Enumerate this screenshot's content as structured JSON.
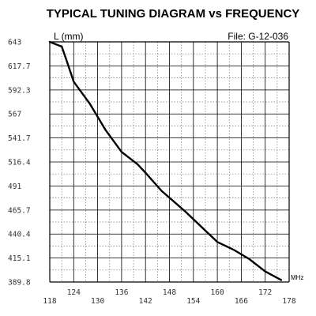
{
  "chart_data": {
    "type": "line",
    "title": "TYPICAL TUNING DIAGRAM vs FREQUENCY",
    "file_label": "File:  G-12-036",
    "ylabel": "L (mm)",
    "xunit": "MHz",
    "xlim": [
      118,
      178
    ],
    "ylim": [
      389.8,
      643
    ],
    "x_ticks": [
      118,
      124,
      130,
      136,
      142,
      148,
      154,
      160,
      166,
      172,
      178
    ],
    "y_ticks": [
      389.8,
      415.1,
      440.4,
      465.7,
      491,
      516.4,
      541.7,
      567,
      592.3,
      617.7,
      643
    ],
    "x_tick_labels": [
      "118",
      "124",
      "130",
      "136",
      "142",
      "148",
      "154",
      "160",
      "166",
      "172",
      "178"
    ],
    "y_tick_labels": [
      "389.8",
      "415.1",
      "440.4",
      "465.7",
      "491",
      "516.4",
      "541.7",
      "567",
      "592.3",
      "617.7",
      "643"
    ],
    "grid": true,
    "series": [
      {
        "x": [
          118,
          121,
          122,
          124,
          128,
          132,
          136,
          140,
          142,
          146,
          152,
          156,
          160,
          164,
          168,
          172,
          176
        ],
        "y": [
          643,
          638,
          626,
          601,
          578,
          550,
          527,
          514,
          505,
          486,
          464,
          448,
          432,
          424,
          414,
          401,
          392
        ]
      }
    ]
  }
}
